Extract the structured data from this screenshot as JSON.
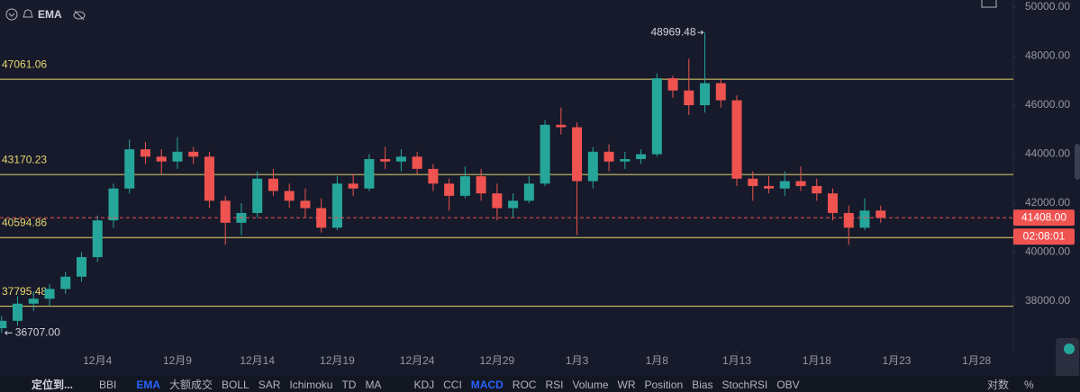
{
  "chart_data": {
    "type": "candlestick",
    "indicator_label": "EMA",
    "x": [
      -3,
      -2,
      -1,
      0,
      1,
      2,
      3,
      4,
      5,
      6,
      7,
      8,
      9,
      10,
      11,
      12,
      13,
      14,
      15,
      16,
      17,
      18,
      19,
      20,
      21,
      22,
      23,
      24,
      25,
      26,
      27,
      28,
      29,
      30,
      31,
      32,
      33,
      34,
      35,
      36,
      37,
      38,
      39,
      40,
      41,
      42,
      43,
      44,
      45,
      46,
      47,
      48,
      49,
      50,
      51,
      52
    ],
    "open": [
      36900,
      37200,
      37900,
      38100,
      38500,
      39000,
      39800,
      41300,
      42600,
      44200,
      43900,
      43700,
      44100,
      43900,
      42100,
      41200,
      41600,
      43000,
      42500,
      42100,
      41800,
      41000,
      42800,
      42600,
      43800,
      43700,
      43900,
      43400,
      42800,
      42300,
      43100,
      42400,
      41800,
      42100,
      42800,
      45200,
      45100,
      42900,
      44100,
      43700,
      43800,
      44000,
      47100,
      46600,
      46000,
      46900,
      46200,
      43000,
      42700,
      42600,
      42900,
      42700,
      42400,
      41600,
      41000,
      41700
    ],
    "high": [
      37400,
      38200,
      38400,
      38700,
      39200,
      40000,
      41500,
      42800,
      44600,
      44500,
      44200,
      44700,
      44300,
      44100,
      42300,
      42000,
      43300,
      43400,
      42800,
      42600,
      42200,
      43100,
      43200,
      44000,
      44300,
      44200,
      44100,
      43600,
      43000,
      43500,
      43400,
      42800,
      42400,
      43100,
      45400,
      45900,
      45300,
      44300,
      44400,
      44100,
      44200,
      47300,
      47200,
      47900,
      48969.48,
      47100,
      46400,
      43300,
      43100,
      43300,
      43500,
      43000,
      42600,
      41900,
      42200,
      41900
    ],
    "low": [
      36707,
      37000,
      37600,
      37800,
      38300,
      38800,
      39600,
      41000,
      42400,
      43600,
      43200,
      43400,
      43600,
      41800,
      40300,
      40700,
      41400,
      42300,
      41800,
      41400,
      40800,
      40900,
      42300,
      42500,
      43400,
      43300,
      43200,
      42500,
      41700,
      42200,
      42100,
      41300,
      41400,
      42000,
      42700,
      44800,
      40700,
      42600,
      43300,
      43400,
      43600,
      43900,
      46300,
      45600,
      45700,
      45900,
      42700,
      42100,
      42400,
      42300,
      42500,
      42100,
      41300,
      40300,
      40900,
      41200
    ],
    "close": [
      37200,
      37900,
      38100,
      38500,
      39000,
      39800,
      41300,
      42600,
      44200,
      43900,
      43700,
      44100,
      43900,
      42100,
      41200,
      41600,
      43000,
      42500,
      42100,
      41800,
      41000,
      42800,
      42600,
      43800,
      43700,
      43900,
      43400,
      42800,
      42300,
      43100,
      42400,
      41800,
      42100,
      42800,
      45200,
      45100,
      42900,
      44100,
      43700,
      43800,
      44000,
      47100,
      46600,
      46000,
      46900,
      46200,
      43000,
      42700,
      42600,
      42900,
      42700,
      42400,
      41600,
      41000,
      41700,
      41408
    ],
    "up_color": "#26a69a",
    "down_color": "#ef5350",
    "xlim": [
      -3.1,
      60.3
    ],
    "xticks": [
      {
        "value": 3,
        "label": "12月4"
      },
      {
        "value": 8,
        "label": "12月9"
      },
      {
        "value": 13,
        "label": "12月14"
      },
      {
        "value": 18,
        "label": "12月19"
      },
      {
        "value": 23,
        "label": "12月24"
      },
      {
        "value": 28,
        "label": "12月29"
      },
      {
        "value": 33,
        "label": "1月3"
      },
      {
        "value": 38,
        "label": "1月8"
      },
      {
        "value": 43,
        "label": "1月13"
      },
      {
        "value": 48,
        "label": "1月18"
      },
      {
        "value": 53,
        "label": "1月23"
      },
      {
        "value": 58,
        "label": "1月28"
      }
    ],
    "ylim": [
      35982,
      50294
    ],
    "yticks": [
      {
        "value": 38000,
        "label": "38000.00"
      },
      {
        "value": 40000,
        "label": "40000.00"
      },
      {
        "value": 42000,
        "label": "42000.00"
      },
      {
        "value": 44000,
        "label": "44000.00"
      },
      {
        "value": 46000,
        "label": "46000.00"
      },
      {
        "value": 48000,
        "label": "48000.00"
      },
      {
        "value": 50000,
        "label": "50000.00"
      }
    ],
    "hlines": [
      47061.06,
      43170.23,
      40594.86,
      37795.48
    ],
    "hline_color": "#e8d66e",
    "min_label": "36707.00",
    "last_price": {
      "value": 41408,
      "label": "41408.00"
    },
    "countdown": "02:08:01"
  },
  "toolbar": {
    "locate": "定位到...",
    "indicators": [
      {
        "label": "BBI"
      },
      {
        "label": "EMA",
        "active": true
      },
      {
        "label": "大额成交"
      },
      {
        "label": "BOLL"
      },
      {
        "label": "SAR"
      },
      {
        "label": "Ichimoku"
      },
      {
        "label": "TD"
      },
      {
        "label": "MA"
      },
      {
        "label": "KDJ"
      },
      {
        "label": "CCI"
      },
      {
        "label": "MACD",
        "active": true
      },
      {
        "label": "ROC"
      },
      {
        "label": "RSI"
      },
      {
        "label": "Volume"
      },
      {
        "label": "WR"
      },
      {
        "label": "Position"
      },
      {
        "label": "Bias"
      },
      {
        "label": "StochRSI"
      },
      {
        "label": "OBV"
      }
    ],
    "log": "对数",
    "percent": "%"
  }
}
